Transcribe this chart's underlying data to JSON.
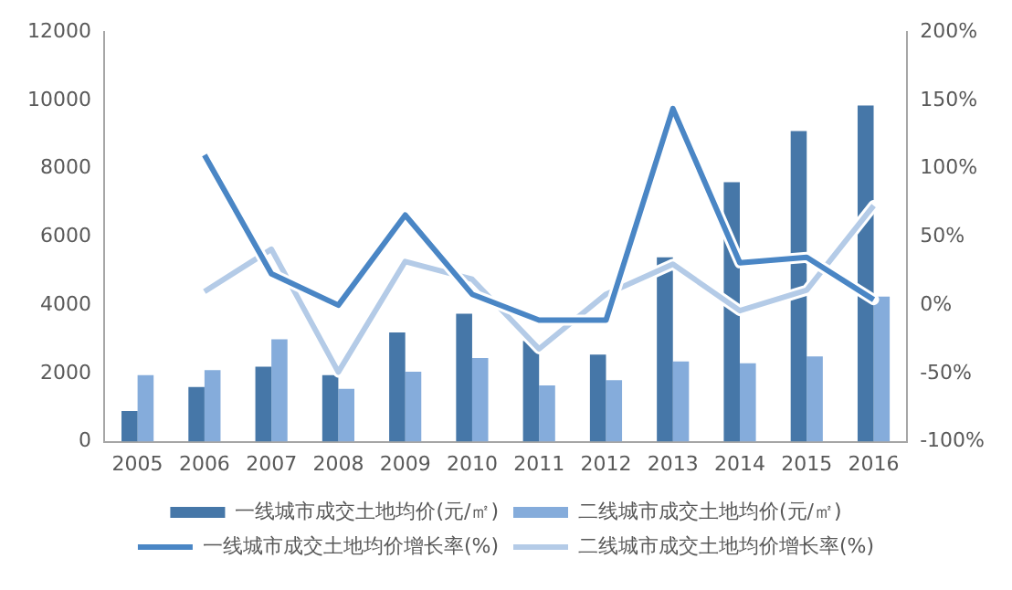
{
  "chart_data": {
    "type": "bar",
    "categories": [
      "2005",
      "2006",
      "2007",
      "2008",
      "2009",
      "2010",
      "2011",
      "2012",
      "2013",
      "2014",
      "2015",
      "2016"
    ],
    "series": [
      {
        "name": "一线城市成交土地均价(元/㎡)",
        "color": "#4677a8",
        "values": [
          900,
          1600,
          2200,
          1950,
          3200,
          3750,
          2950,
          2550,
          5400,
          7600,
          9100,
          9850
        ]
      },
      {
        "name": "二线城市成交土地均价(元/㎡)",
        "color": "#85acdb",
        "values": [
          1950,
          2100,
          3000,
          1550,
          2050,
          2450,
          1650,
          1800,
          2350,
          2300,
          2500,
          4250
        ]
      },
      {
        "name": "一线城市成交土地均价增长率(%)",
        "type": "line",
        "axis": "y2",
        "color": "#4a86c5",
        "values": [
          null,
          110,
          23,
          0,
          66,
          8,
          -11,
          -11,
          144,
          31,
          35,
          4
        ]
      },
      {
        "name": "二线城市成交土地均价增长率(%)",
        "type": "line",
        "axis": "y2",
        "color": "#b4cbe7",
        "values": [
          null,
          10,
          41,
          -49,
          32,
          19,
          -32,
          8,
          30,
          -4,
          11,
          73
        ]
      }
    ],
    "ylim": [
      0,
      12000
    ],
    "yticks": [
      0,
      2000,
      4000,
      6000,
      8000,
      10000,
      12000
    ],
    "y2lim": [
      -100,
      200
    ],
    "y2ticks": [
      {
        "value": -100,
        "label": "-100%"
      },
      {
        "value": -50,
        "label": "-50%"
      },
      {
        "value": 0,
        "label": "0%"
      },
      {
        "value": 50,
        "label": "50%"
      },
      {
        "value": 100,
        "label": "100%"
      },
      {
        "value": 150,
        "label": "150%"
      },
      {
        "value": 200,
        "label": "200%"
      }
    ],
    "grid": false,
    "legend": "bottom",
    "marker": "none",
    "line_style": "solid"
  }
}
